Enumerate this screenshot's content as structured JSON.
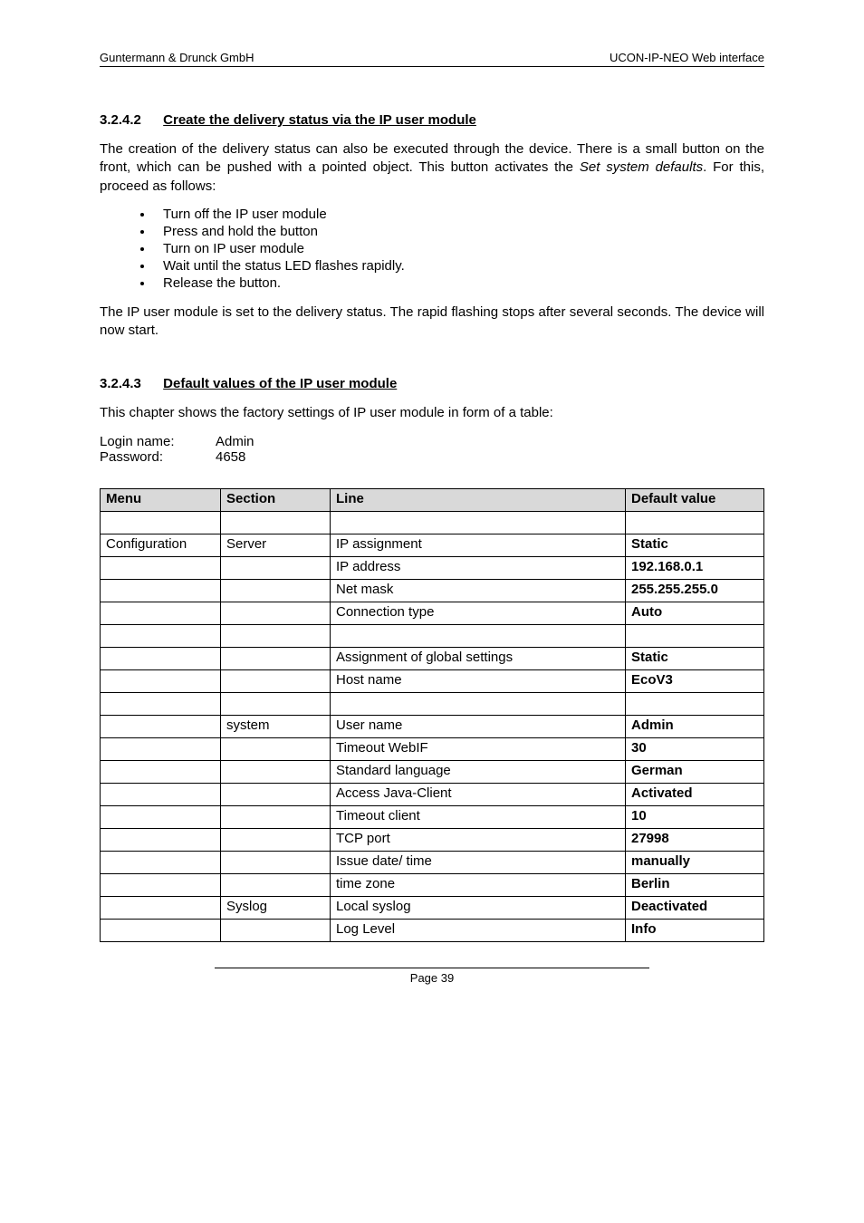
{
  "header": {
    "left": "Guntermann & Drunck GmbH",
    "right": "UCON-IP-NEO Web interface"
  },
  "section1": {
    "number": "3.2.4.2",
    "title": "Create the delivery status via the IP user module",
    "para1_a": "The creation of the delivery status can also be executed through the device. There is a small button on the front, which can be pushed with a pointed object. This button activates the ",
    "para1_ital": "Set system defaults",
    "para1_b": ". For this, proceed as follows:",
    "bullets": [
      "Turn off the IP user module",
      "Press and hold the button",
      "Turn on IP user module",
      "Wait until the status LED flashes rapidly.",
      "Release the button."
    ],
    "para2": "The IP user module is set to the delivery status. The rapid flashing stops after several seconds. The device will now start."
  },
  "section2": {
    "number": "3.2.4.3",
    "title": "Default values of the IP user module",
    "intro": "This chapter shows the factory settings of IP user module in form of a table:",
    "login_name_label": "Login name:",
    "login_name_value": "Admin",
    "password_label": "Password:",
    "password_value": "4658"
  },
  "table": {
    "headers": {
      "menu": "Menu",
      "section": "Section",
      "line": "Line",
      "value": "Default value"
    },
    "rows": [
      {
        "menu": "",
        "section": "",
        "line": "",
        "value": "",
        "bold": false
      },
      {
        "menu": "Configuration",
        "section": "Server",
        "line": "IP assignment",
        "value": "Static",
        "bold": true
      },
      {
        "menu": "",
        "section": "",
        "line": "IP address",
        "value": "192.168.0.1",
        "bold": true
      },
      {
        "menu": "",
        "section": "",
        "line": "Net mask",
        "value": "255.255.255.0",
        "bold": true
      },
      {
        "menu": "",
        "section": "",
        "line": "Connection type",
        "value": "Auto",
        "bold": true
      },
      {
        "menu": "",
        "section": "",
        "line": "",
        "value": "",
        "bold": false
      },
      {
        "menu": "",
        "section": "",
        "line": "Assignment of global settings",
        "value": "Static",
        "bold": true
      },
      {
        "menu": "",
        "section": "",
        "line": "Host name",
        "value": "EcoV3",
        "bold": true
      },
      {
        "menu": "",
        "section": "",
        "line": "",
        "value": "",
        "bold": false
      },
      {
        "menu": "",
        "section": "system",
        "line": "User name",
        "value": "Admin",
        "bold": true
      },
      {
        "menu": "",
        "section": "",
        "line": "Timeout WebIF",
        "value": "30",
        "bold": true
      },
      {
        "menu": "",
        "section": "",
        "line": "Standard language",
        "value": "German",
        "bold": true
      },
      {
        "menu": "",
        "section": "",
        "line": "Access Java-Client",
        "value": "Activated",
        "bold": true
      },
      {
        "menu": "",
        "section": "",
        "line": "Timeout client",
        "value": "10",
        "bold": true
      },
      {
        "menu": "",
        "section": "",
        "line": "TCP port",
        "value": "27998",
        "bold": true
      },
      {
        "menu": "",
        "section": "",
        "line": "Issue date/ time",
        "value": "manually",
        "bold": true
      },
      {
        "menu": "",
        "section": "",
        "line": "time zone",
        "value": "Berlin",
        "bold": true
      },
      {
        "menu": "",
        "section": "Syslog",
        "line": "Local syslog",
        "value": "Deactivated",
        "bold": true
      },
      {
        "menu": "",
        "section": "",
        "line": "Log Level",
        "value": "Info",
        "bold": true
      }
    ]
  },
  "footer": "Page 39"
}
